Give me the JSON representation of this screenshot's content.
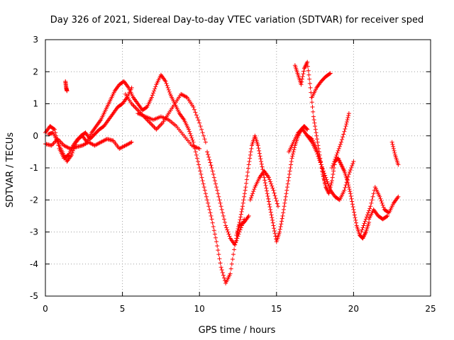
{
  "chart_data": {
    "type": "scatter",
    "title": "Day 326 of 2021, Sidereal Day-to-day VTEC variation (SDTVAR) for receiver sped",
    "xlabel": "GPS time / hours",
    "ylabel": "SDTVAR / TECUs",
    "xlim": [
      0,
      25
    ],
    "ylim": [
      -5,
      3
    ],
    "xticks": [
      "0",
      "5",
      "10",
      "15",
      "20",
      "25"
    ],
    "yticks": [
      "-5",
      "-4",
      "-3",
      "-2",
      "-1",
      "0",
      "1",
      "2",
      "3"
    ],
    "grid": true,
    "marker": "plus",
    "color": "#ff0000",
    "series": [
      {
        "x": [
          0.0,
          0.3,
          0.6,
          0.9,
          1.2,
          1.5,
          1.8,
          2.1,
          2.4,
          2.7,
          3.0,
          3.3,
          3.6,
          3.9,
          4.2,
          4.5,
          4.8,
          5.1,
          5.4,
          5.7,
          6.0,
          6.3,
          6.6,
          6.9,
          7.2,
          7.5,
          7.8,
          8.1,
          8.4,
          8.7,
          9.0,
          9.3,
          9.6,
          9.9,
          10.2,
          10.5,
          10.8,
          11.1,
          11.4,
          11.7,
          12.0,
          12.3,
          12.6,
          12.9,
          13.2
        ],
        "y": [
          0.1,
          0.3,
          0.2,
          -0.4,
          -0.7,
          -0.6,
          -0.3,
          -0.1,
          0.0,
          -0.2,
          0.1,
          0.3,
          0.5,
          0.8,
          1.1,
          1.4,
          1.6,
          1.7,
          1.5,
          1.2,
          1.0,
          0.8,
          0.9,
          1.2,
          1.6,
          1.9,
          1.7,
          1.3,
          1.0,
          0.7,
          0.5,
          0.2,
          -0.2,
          -0.8,
          -1.4,
          -2.0,
          -2.6,
          -3.3,
          -4.1,
          -4.6,
          -4.3,
          -3.4,
          -2.8,
          -2.7,
          -2.5
        ]
      },
      {
        "x": [
          0.0,
          0.4,
          0.8,
          1.2,
          1.6,
          2.0,
          2.4,
          2.8,
          3.2,
          3.6,
          4.0,
          4.4,
          4.8,
          5.2,
          5.6
        ],
        "y": [
          -0.25,
          -0.3,
          -0.1,
          -0.3,
          -0.4,
          -0.35,
          -0.3,
          -0.2,
          -0.3,
          -0.2,
          -0.1,
          -0.15,
          -0.4,
          -0.3,
          -0.2
        ]
      },
      {
        "x": [
          0.2,
          0.5,
          0.8,
          1.1,
          1.4,
          1.7,
          2.0,
          2.3,
          2.6,
          2.9,
          3.2,
          3.5,
          3.8,
          4.1,
          4.4,
          4.7,
          5.0,
          5.3,
          5.6
        ],
        "y": [
          0.05,
          0.1,
          -0.2,
          -0.5,
          -0.8,
          -0.6,
          -0.2,
          0.0,
          0.1,
          -0.1,
          0.05,
          0.2,
          0.3,
          0.5,
          0.7,
          0.9,
          1.0,
          1.2,
          1.5
        ]
      },
      {
        "x": [
          1.3,
          1.35,
          1.4
        ],
        "y": [
          1.7,
          1.5,
          1.4
        ]
      },
      {
        "x": [
          5.2,
          5.6,
          6.0,
          6.4,
          6.8,
          7.2,
          7.6,
          8.0,
          8.4,
          8.8,
          9.2,
          9.6,
          10.0,
          10.4
        ],
        "y": [
          1.3,
          1.0,
          0.8,
          0.6,
          0.4,
          0.2,
          0.4,
          0.7,
          1.0,
          1.3,
          1.2,
          0.9,
          0.4,
          -0.2
        ]
      },
      {
        "x": [
          6.0,
          6.5,
          7.0,
          7.5,
          8.0,
          8.5,
          9.0,
          9.5,
          10.0
        ],
        "y": [
          0.7,
          0.6,
          0.5,
          0.6,
          0.5,
          0.3,
          0.0,
          -0.3,
          -0.4
        ]
      },
      {
        "x": [
          10.5,
          10.8,
          11.1,
          11.4,
          11.7,
          12.0,
          12.3,
          12.6,
          12.9
        ],
        "y": [
          -0.5,
          -1.0,
          -1.6,
          -2.2,
          -2.8,
          -3.2,
          -3.4,
          -3.0,
          -2.6
        ]
      },
      {
        "x": [
          12.4,
          12.6,
          12.8,
          13.0,
          13.2,
          13.4,
          13.6,
          13.8,
          14.0,
          14.2,
          14.4,
          14.6,
          14.8,
          15.0,
          15.2,
          15.4,
          15.6,
          15.8,
          16.0,
          16.2,
          16.4,
          16.6,
          16.8,
          17.0
        ],
        "y": [
          -3.1,
          -2.7,
          -2.2,
          -1.6,
          -0.9,
          -0.3,
          0.0,
          -0.3,
          -0.8,
          -1.3,
          -1.8,
          -2.3,
          -2.8,
          -3.3,
          -3.0,
          -2.5,
          -1.9,
          -1.3,
          -0.7,
          -0.3,
          0.0,
          0.2,
          0.3,
          0.2
        ]
      },
      {
        "x": [
          13.3,
          13.6,
          13.9,
          14.2,
          14.5,
          14.8,
          15.1
        ],
        "y": [
          -2.0,
          -1.6,
          -1.3,
          -1.1,
          -1.3,
          -1.7,
          -2.2
        ]
      },
      {
        "x": [
          16.2,
          16.4,
          16.6,
          16.8,
          17.0,
          17.2,
          17.4,
          17.6,
          17.8,
          18.0,
          18.2,
          18.4,
          18.6,
          18.8,
          19.0,
          19.2,
          19.4,
          19.6,
          19.8,
          20.0,
          20.2,
          20.4,
          20.6,
          20.8,
          21.0
        ],
        "y": [
          2.2,
          1.9,
          1.6,
          2.1,
          2.3,
          1.5,
          0.6,
          0.0,
          -0.6,
          -1.2,
          -1.6,
          -1.8,
          -1.4,
          -0.8,
          -0.7,
          -0.9,
          -1.1,
          -1.4,
          -1.8,
          -2.3,
          -2.8,
          -3.1,
          -3.2,
          -3.0,
          -2.7
        ]
      },
      {
        "x": [
          17.0,
          17.3,
          17.6,
          17.9,
          18.2,
          18.5,
          18.8,
          19.1,
          19.4,
          19.7,
          20.0
        ],
        "y": [
          0.0,
          -0.2,
          -0.5,
          -0.9,
          -1.3,
          -1.7,
          -1.9,
          -2.0,
          -1.7,
          -1.2,
          -0.8
        ]
      },
      {
        "x": [
          17.3,
          17.6,
          17.9,
          18.2,
          18.5
        ],
        "y": [
          1.2,
          1.5,
          1.7,
          1.85,
          1.95
        ]
      },
      {
        "x": [
          18.6,
          18.9,
          19.2,
          19.5,
          19.7
        ],
        "y": [
          -1.0,
          -0.6,
          -0.2,
          0.3,
          0.7
        ]
      },
      {
        "x": [
          15.8,
          16.1,
          16.4,
          16.7,
          17.0,
          17.3,
          17.6,
          17.9,
          18.2
        ],
        "y": [
          -0.5,
          -0.2,
          0.1,
          0.2,
          0.0,
          -0.1,
          -0.4,
          -0.9,
          -1.6
        ]
      },
      {
        "x": [
          20.5,
          20.8,
          21.1,
          21.4,
          21.7,
          22.0,
          22.3,
          22.6,
          22.9
        ],
        "y": [
          -3.0,
          -2.6,
          -2.2,
          -1.6,
          -1.9,
          -2.3,
          -2.4,
          -2.1,
          -1.9
        ]
      },
      {
        "x": [
          21.0,
          21.3,
          21.6,
          21.9,
          22.2
        ],
        "y": [
          -2.6,
          -2.3,
          -2.5,
          -2.6,
          -2.5
        ]
      },
      {
        "x": [
          22.5,
          22.7,
          22.9
        ],
        "y": [
          -0.2,
          -0.6,
          -0.9
        ]
      }
    ]
  }
}
